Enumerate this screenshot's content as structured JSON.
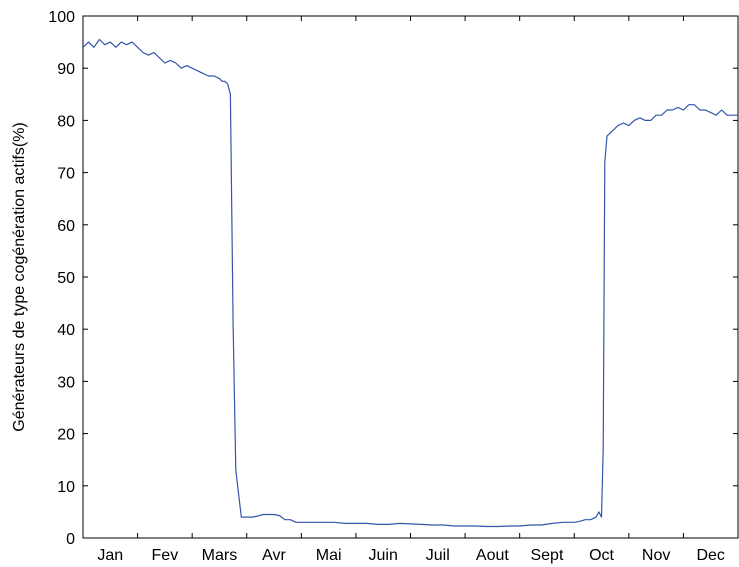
{
  "chart_data": {
    "type": "line",
    "title": "",
    "xlabel": "",
    "ylabel": "Générateurs de type cogénération actifs(%)",
    "ylim": [
      0,
      100
    ],
    "y_ticks": [
      0,
      10,
      20,
      30,
      40,
      50,
      60,
      70,
      80,
      90,
      100
    ],
    "x_ticks": [
      "Jan",
      "Fev",
      "Mars",
      "Avr",
      "Mai",
      "Juin",
      "Juil",
      "Aout",
      "Sept",
      "Oct",
      "Nov",
      "Dec"
    ],
    "grid": false,
    "legend": "none",
    "series": [
      {
        "color": "#3355aa",
        "x": [
          0.0,
          0.1,
          0.2,
          0.3,
          0.4,
          0.5,
          0.6,
          0.7,
          0.8,
          0.9,
          1.0,
          1.1,
          1.2,
          1.3,
          1.4,
          1.5,
          1.6,
          1.7,
          1.8,
          1.9,
          2.0,
          2.1,
          2.2,
          2.3,
          2.4,
          2.5,
          2.55,
          2.6,
          2.65,
          2.7,
          2.75,
          2.8,
          2.9,
          3.0,
          3.1,
          3.2,
          3.3,
          3.4,
          3.5,
          3.6,
          3.7,
          3.8,
          3.9,
          4.0,
          4.2,
          4.4,
          4.6,
          4.8,
          5.0,
          5.2,
          5.4,
          5.6,
          5.8,
          6.0,
          6.2,
          6.4,
          6.6,
          6.8,
          7.0,
          7.2,
          7.4,
          7.6,
          7.8,
          8.0,
          8.2,
          8.4,
          8.6,
          8.8,
          9.0,
          9.1,
          9.2,
          9.3,
          9.4,
          9.45,
          9.5,
          9.53,
          9.56,
          9.6,
          9.7,
          9.8,
          9.9,
          10.0,
          10.1,
          10.2,
          10.3,
          10.4,
          10.5,
          10.6,
          10.7,
          10.8,
          10.9,
          11.0,
          11.1,
          11.2,
          11.3,
          11.4,
          11.5,
          11.6,
          11.7,
          11.8,
          11.9,
          12.0
        ],
        "y": [
          94,
          95,
          94,
          95.5,
          94.5,
          95,
          94,
          95,
          94.5,
          95,
          94,
          93,
          92.5,
          93,
          92,
          91,
          91.5,
          91,
          90,
          90.5,
          90,
          89.5,
          89,
          88.5,
          88.5,
          88,
          87.5,
          87.5,
          87,
          85,
          41,
          13,
          4,
          4,
          4,
          4.2,
          4.5,
          4.5,
          4.5,
          4.3,
          3.5,
          3.5,
          3,
          3,
          3,
          3,
          3,
          2.8,
          2.8,
          2.8,
          2.6,
          2.6,
          2.8,
          2.7,
          2.6,
          2.5,
          2.5,
          2.3,
          2.3,
          2.3,
          2.2,
          2.2,
          2.3,
          2.3,
          2.5,
          2.5,
          2.8,
          3,
          3,
          3.2,
          3.5,
          3.5,
          4,
          5,
          4,
          17,
          72,
          77,
          78,
          79,
          79.5,
          79,
          80,
          80.5,
          80,
          80,
          81,
          81,
          82,
          82,
          82.5,
          82,
          83,
          83,
          82,
          82,
          81.5,
          81,
          82,
          81,
          81,
          81
        ]
      }
    ]
  }
}
